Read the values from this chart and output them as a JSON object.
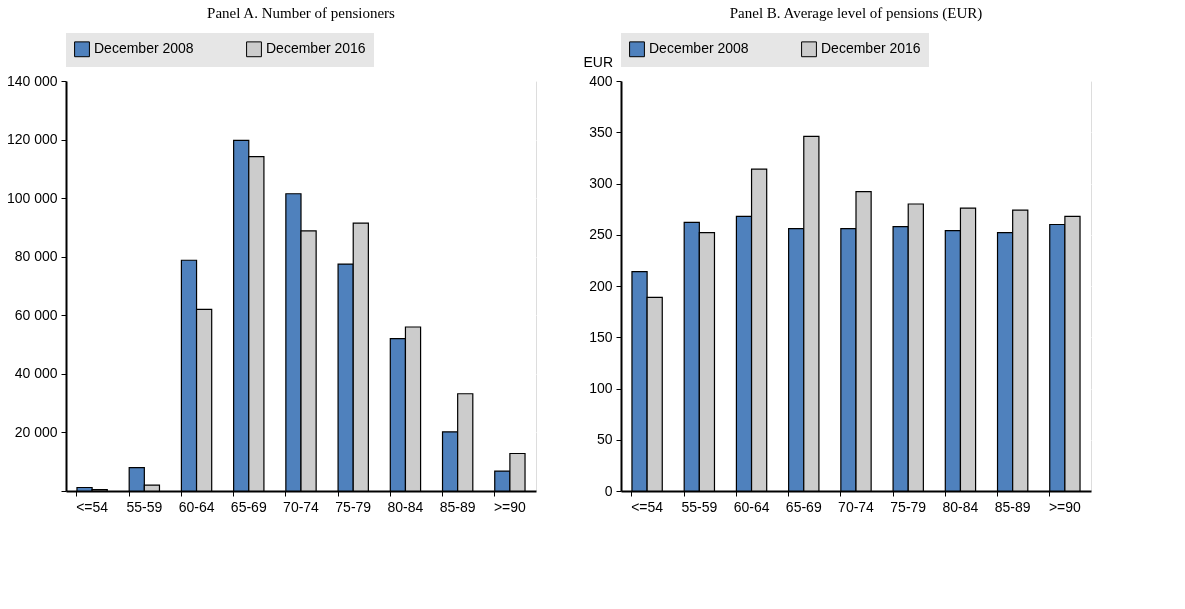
{
  "chart_data": [
    {
      "type": "bar",
      "title": "Panel A. Number of pensioners",
      "categories": [
        "<=54",
        "55-59",
        "60-64",
        "65-69",
        "70-74",
        "75-79",
        "80-84",
        "85-89",
        ">=90"
      ],
      "series": [
        {
          "name": "December 2008",
          "color": "#4f81bd",
          "values": [
            1200,
            8000,
            78800,
            119700,
            101500,
            77500,
            52000,
            20200,
            6800
          ]
        },
        {
          "name": "December 2016",
          "color": "#cccccc",
          "values": [
            500,
            2000,
            62000,
            114200,
            88800,
            91500,
            56000,
            33200,
            12800
          ]
        }
      ],
      "ylim": [
        0,
        140000
      ],
      "yticks": [
        {
          "value": 0,
          "label": null
        },
        {
          "value": 20000,
          "label": "20 000"
        },
        {
          "value": 40000,
          "label": "40 000"
        },
        {
          "value": 60000,
          "label": "60 000"
        },
        {
          "value": 80000,
          "label": "80 000"
        },
        {
          "value": 100000,
          "label": "100 000"
        },
        {
          "value": 120000,
          "label": "120 000"
        },
        {
          "value": 140000,
          "label": "140 000"
        }
      ],
      "grid": true,
      "legend": "top"
    },
    {
      "type": "bar",
      "title": "Panel B. Average level of pensions (EUR)",
      "ylabel": "EUR",
      "categories": [
        "<=54",
        "55-59",
        "60-64",
        "65-69",
        "70-74",
        "75-79",
        "80-84",
        "85-89",
        ">=90"
      ],
      "series": [
        {
          "name": "December 2008",
          "color": "#4f81bd",
          "values": [
            214,
            262,
            268,
            256,
            256,
            258,
            254,
            252,
            260
          ]
        },
        {
          "name": "December 2016",
          "color": "#cccccc",
          "values": [
            189,
            252,
            314,
            346,
            292,
            280,
            276,
            274,
            268
          ]
        }
      ],
      "ylim": [
        0,
        400
      ],
      "yticks": [
        0,
        50,
        100,
        150,
        200,
        250,
        300,
        350,
        400
      ],
      "grid": true,
      "legend": "top"
    }
  ]
}
